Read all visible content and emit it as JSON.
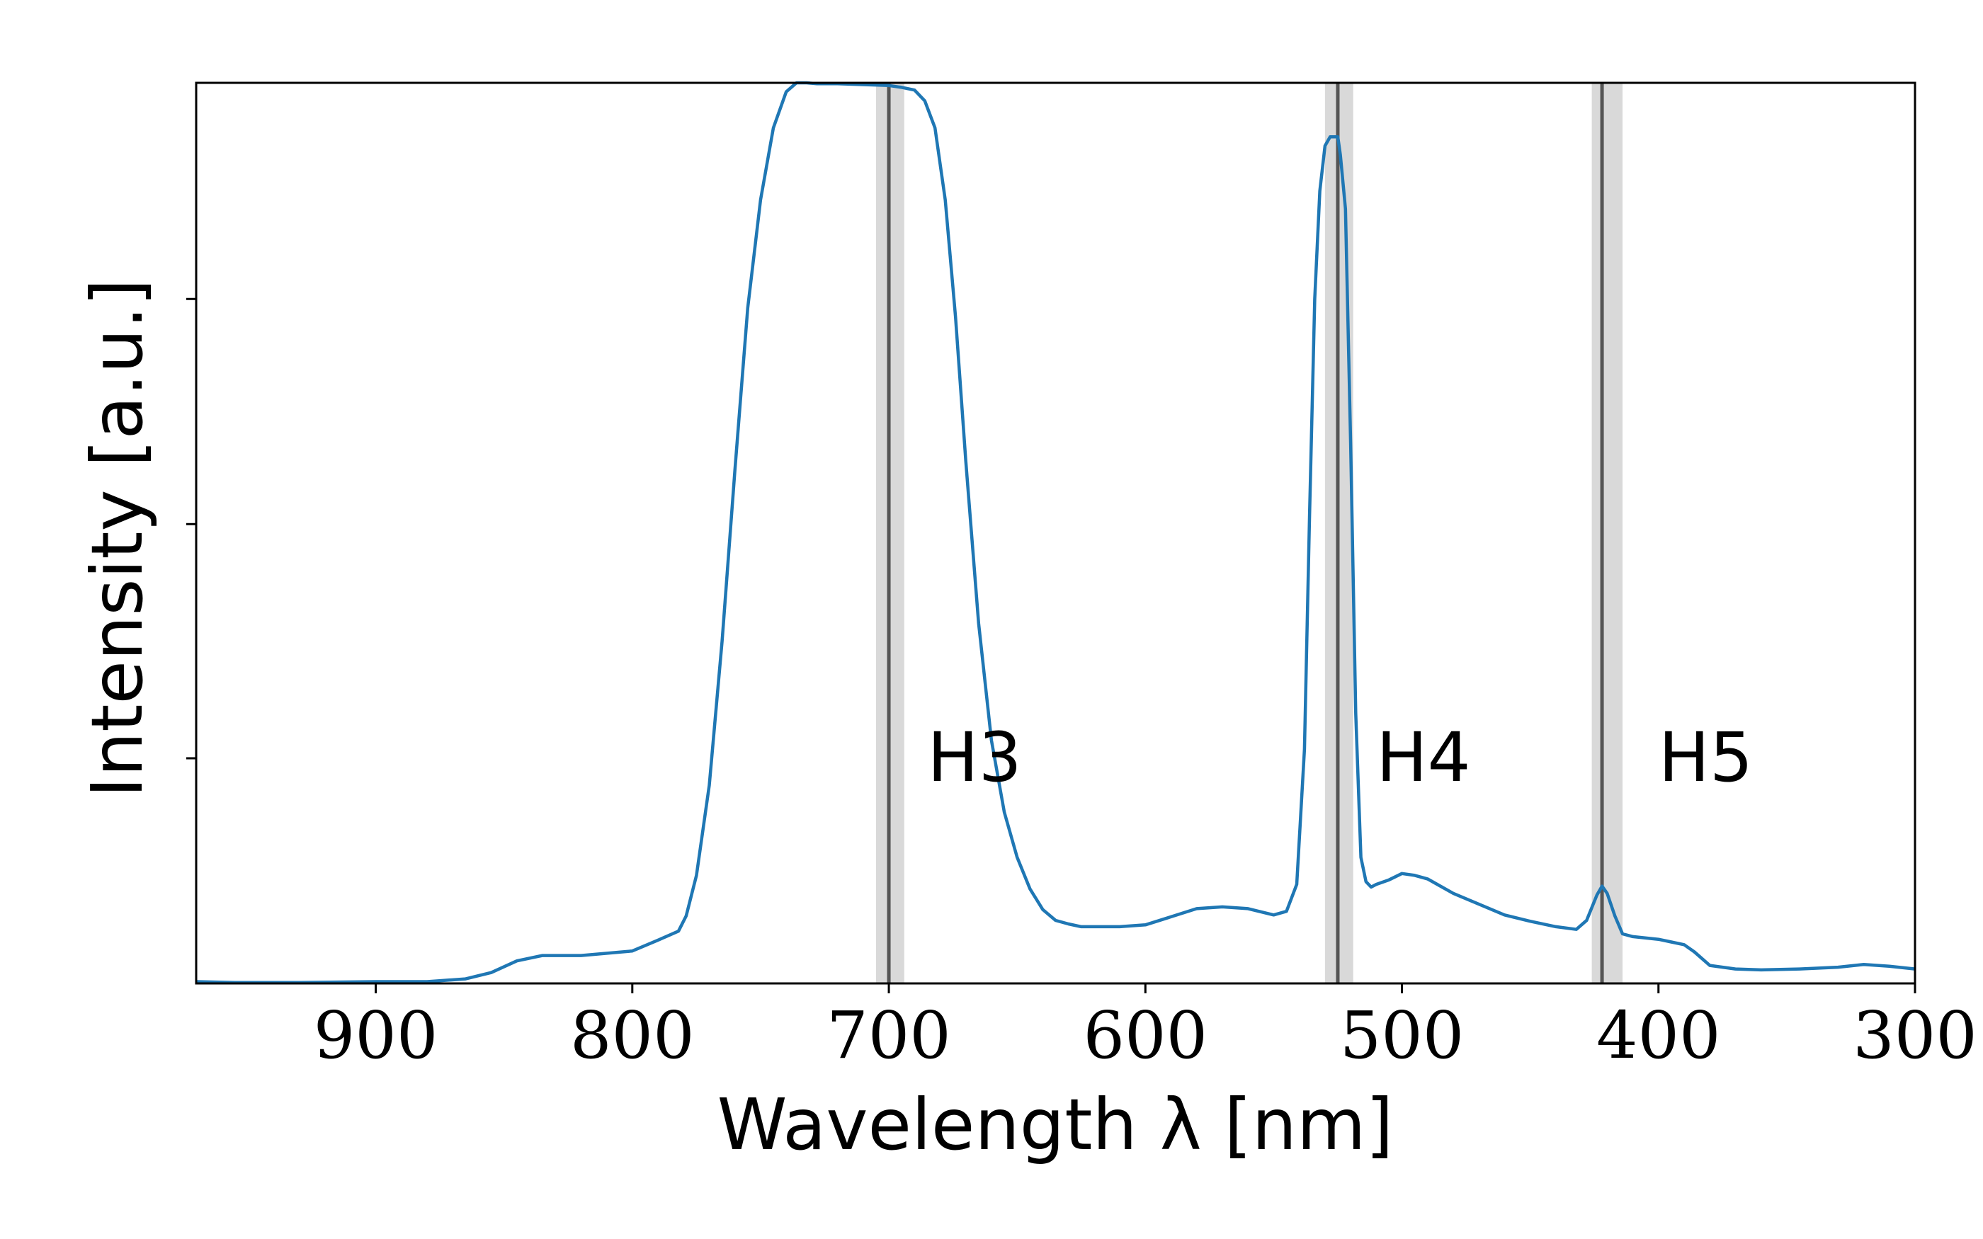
{
  "chart_data": {
    "type": "line",
    "xlabel": "Wavelength λ [nm]",
    "ylabel": "Intensity [a.u.]",
    "xlim": [
      970,
      300
    ],
    "x_reversed": true,
    "ylim": [
      0,
      1
    ],
    "y_ticks_unlabeled": [
      0.25,
      0.51,
      0.76
    ],
    "x_ticks": [
      {
        "value": 900,
        "label": "900"
      },
      {
        "value": 800,
        "label": "800"
      },
      {
        "value": 700,
        "label": "700"
      },
      {
        "value": 600,
        "label": "600"
      },
      {
        "value": 500,
        "label": "500"
      },
      {
        "value": 400,
        "label": "400"
      },
      {
        "value": 300,
        "label": "300"
      }
    ],
    "grid": false,
    "series_color": "#1f77b4",
    "reference_lines": [
      {
        "label": "H3",
        "x": 700,
        "band": [
          705,
          694
        ],
        "label_x": 685,
        "label_y": 0.225
      },
      {
        "label": "H4",
        "x": 525,
        "band": [
          530,
          519
        ],
        "label_x": 510,
        "label_y": 0.225
      },
      {
        "label": "H5",
        "x": 422,
        "band": [
          426,
          414
        ],
        "label_x": 400,
        "label_y": 0.225
      }
    ],
    "reference_line_color": "#555555",
    "reference_band_color": "#d9d9d9",
    "x": [
      970,
      955,
      930,
      900,
      880,
      865,
      855,
      845,
      835,
      820,
      800,
      790,
      782,
      779,
      775,
      770,
      765,
      760,
      755,
      750,
      745,
      740,
      736,
      732,
      728,
      720,
      710,
      700,
      695,
      690,
      686,
      682,
      678,
      674,
      670,
      665,
      660,
      655,
      650,
      645,
      640,
      635,
      630,
      625,
      620,
      610,
      600,
      590,
      580,
      570,
      560,
      550,
      545,
      541,
      538,
      536,
      534,
      532,
      530,
      528,
      526,
      525,
      524,
      522,
      520,
      518,
      516,
      514,
      512,
      510,
      505,
      500,
      495,
      490,
      485,
      480,
      470,
      460,
      450,
      440,
      432,
      428,
      424,
      422,
      420,
      417,
      414,
      410,
      400,
      395,
      390,
      386,
      380,
      370,
      360,
      345,
      330,
      320,
      310,
      300
    ],
    "y": [
      0.002,
      0.001,
      0.001,
      0.002,
      0.002,
      0.005,
      0.012,
      0.025,
      0.031,
      0.031,
      0.036,
      0.048,
      0.058,
      0.075,
      0.12,
      0.22,
      0.38,
      0.57,
      0.75,
      0.87,
      0.95,
      0.99,
      1.0,
      1.0,
      0.999,
      0.999,
      0.998,
      0.997,
      0.995,
      0.992,
      0.98,
      0.95,
      0.87,
      0.74,
      0.58,
      0.4,
      0.27,
      0.19,
      0.14,
      0.105,
      0.082,
      0.07,
      0.066,
      0.063,
      0.063,
      0.063,
      0.065,
      0.074,
      0.083,
      0.085,
      0.083,
      0.076,
      0.08,
      0.11,
      0.26,
      0.52,
      0.76,
      0.88,
      0.93,
      0.94,
      0.94,
      0.94,
      0.92,
      0.86,
      0.6,
      0.3,
      0.14,
      0.113,
      0.107,
      0.11,
      0.115,
      0.122,
      0.12,
      0.116,
      0.108,
      0.1,
      0.088,
      0.076,
      0.069,
      0.063,
      0.06,
      0.07,
      0.098,
      0.108,
      0.1,
      0.075,
      0.055,
      0.052,
      0.049,
      0.046,
      0.043,
      0.035,
      0.02,
      0.016,
      0.015,
      0.016,
      0.018,
      0.021,
      0.019,
      0.016
    ]
  }
}
